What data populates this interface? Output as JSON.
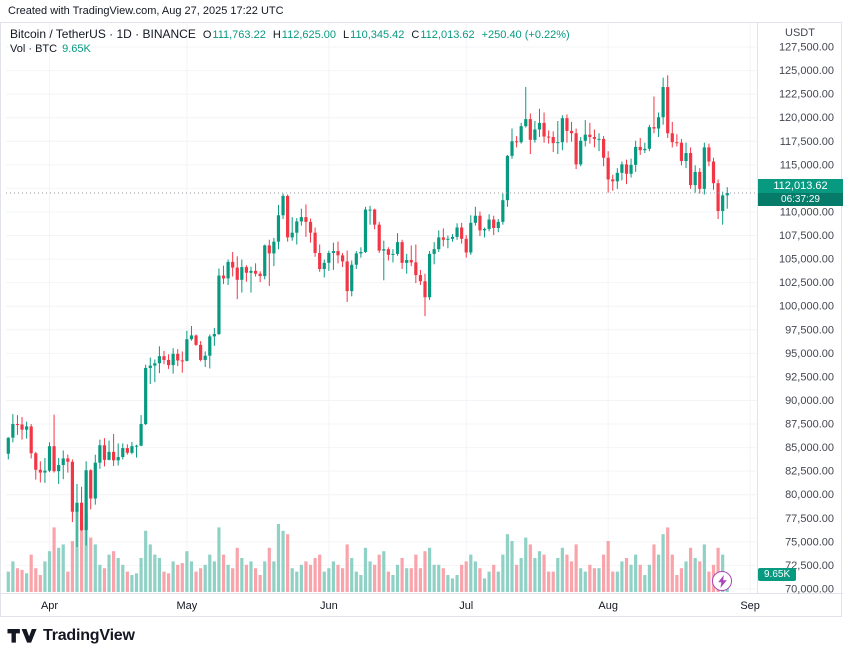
{
  "meta": {
    "created_line": "Created with TradingView.com, Aug 27, 2025 17:22 UTC"
  },
  "legend": {
    "title": "Bitcoin / TetherUS · 1D · BINANCE",
    "ohlc": [
      {
        "label": "O",
        "value": "111,763.22"
      },
      {
        "label": "H",
        "value": "112,625.00"
      },
      {
        "label": "L",
        "value": "110,345.42"
      },
      {
        "label": "C",
        "value": "112,013.62"
      }
    ],
    "change": "+250.40 (+0.22%)",
    "vol_title": "Vol · BTC",
    "vol_value": "9.65K"
  },
  "axis": {
    "currency": "USDT",
    "price_ticks": [
      "127,500.00",
      "125,000.00",
      "122,500.00",
      "120,000.00",
      "117,500.00",
      "115,000.00",
      "112,500.00",
      "110,000.00",
      "107,500.00",
      "105,000.00",
      "102,500.00",
      "100,000.00",
      "97,500.00",
      "95,000.00",
      "92,500.00",
      "90,000.00",
      "87,500.00",
      "85,000.00",
      "82,500.00",
      "80,000.00",
      "77,500.00",
      "75,000.00",
      "72,500.00",
      "70,000.00"
    ],
    "price_tick_values": [
      127500,
      125000,
      122500,
      120000,
      117500,
      115000,
      112500,
      110000,
      107500,
      105000,
      102500,
      100000,
      97500,
      95000,
      92500,
      90000,
      87500,
      85000,
      82500,
      80000,
      77500,
      75000,
      72500,
      70000
    ],
    "months": [
      {
        "label": "Apr",
        "index": 9
      },
      {
        "label": "May",
        "index": 39
      },
      {
        "label": "Jun",
        "index": 70
      },
      {
        "label": "Jul",
        "index": 100
      },
      {
        "label": "Aug",
        "index": 131
      },
      {
        "label": "Sep",
        "index": 162
      }
    ],
    "last_price_label": "112,013.62",
    "countdown": "06:37:29",
    "volume_label": "9.65K"
  },
  "colors": {
    "up": "#089981",
    "down": "#f23645",
    "vol_up": "#90d1c6",
    "vol_down": "#f9a4ab",
    "grid": "#f3f4f7",
    "border": "#e0e3eb",
    "axis_text": "#434651",
    "axis_text_dark": "#131722",
    "price_line": "#9598a1",
    "badge_bg": "#089981",
    "lightning": "#ab47bc"
  },
  "footer": {
    "brand": "TradingView"
  },
  "chart_data": {
    "type": "candlestick",
    "title": "Bitcoin / TetherUS 1D BINANCE",
    "interval": "1D",
    "start_date": "2025-03-23",
    "end_date": "2025-08-27",
    "price_range": [
      70000,
      127500
    ],
    "total_slots": 164,
    "vol_scale_max": 50,
    "last_close": 112013.62,
    "candles": [
      [
        84350,
        86100,
        83750,
        86050
      ],
      [
        86050,
        88550,
        85550,
        87500
      ],
      [
        87500,
        88450,
        86350,
        87450
      ],
      [
        87450,
        88250,
        85850,
        86900
      ],
      [
        86900,
        87750,
        85950,
        87250
      ],
      [
        87250,
        87500,
        83850,
        84400
      ],
      [
        84400,
        84550,
        81600,
        82650
      ],
      [
        82650,
        83550,
        81300,
        82350
      ],
      [
        82350,
        83900,
        81250,
        82550
      ],
      [
        82550,
        85550,
        82400,
        85150
      ],
      [
        85150,
        88500,
        82350,
        82500
      ],
      [
        82500,
        83900,
        81150,
        83150
      ],
      [
        83150,
        84700,
        81650,
        83850
      ],
      [
        83850,
        84250,
        82350,
        83500
      ],
      [
        83500,
        83750,
        77100,
        78200
      ],
      [
        78200,
        81150,
        74450,
        79150
      ],
      [
        79150,
        80850,
        76150,
        76250
      ],
      [
        76250,
        83550,
        74600,
        82600
      ],
      [
        82600,
        82700,
        78450,
        79600
      ],
      [
        79600,
        84250,
        78950,
        83400
      ],
      [
        83400,
        85850,
        82750,
        85250
      ],
      [
        85250,
        86000,
        83000,
        83700
      ],
      [
        83700,
        85750,
        83650,
        84550
      ],
      [
        84550,
        86450,
        83050,
        83650
      ],
      [
        83650,
        85450,
        83100,
        84000
      ],
      [
        84000,
        85450,
        83750,
        84950
      ],
      [
        84950,
        85350,
        84250,
        84450
      ],
      [
        84450,
        85600,
        84300,
        85150
      ],
      [
        85150,
        85300,
        83950,
        85200
      ],
      [
        85200,
        88450,
        85150,
        87500
      ],
      [
        87500,
        93800,
        87400,
        93450
      ],
      [
        93450,
        94550,
        91750,
        93700
      ],
      [
        93700,
        94350,
        91950,
        93950
      ],
      [
        93950,
        95750,
        92900,
        94700
      ],
      [
        94700,
        95250,
        93850,
        94300
      ],
      [
        94300,
        94900,
        93350,
        93750
      ],
      [
        93750,
        95550,
        92850,
        94950
      ],
      [
        94950,
        95450,
        93650,
        94250
      ],
      [
        94250,
        95200,
        92950,
        94200
      ],
      [
        94200,
        97400,
        94150,
        96500
      ],
      [
        96500,
        97900,
        96350,
        96900
      ],
      [
        96900,
        97000,
        95800,
        95900
      ],
      [
        95900,
        96300,
        94150,
        94300
      ],
      [
        94300,
        95200,
        93550,
        94750
      ],
      [
        94750,
        97000,
        93400,
        96800
      ],
      [
        96800,
        97700,
        95800,
        97050
      ],
      [
        97050,
        104000,
        96950,
        103250
      ],
      [
        103250,
        104300,
        102350,
        102950
      ],
      [
        102950,
        104950,
        102250,
        104700
      ],
      [
        104700,
        105750,
        103150,
        104100
      ],
      [
        104100,
        105300,
        100750,
        102800
      ],
      [
        102800,
        104950,
        101450,
        104150
      ],
      [
        104150,
        104350,
        102600,
        103550
      ],
      [
        103550,
        104200,
        101450,
        103750
      ],
      [
        103750,
        104550,
        103150,
        103450
      ],
      [
        103450,
        103700,
        102550,
        103200
      ],
      [
        103200,
        106550,
        102850,
        106450
      ],
      [
        106450,
        107050,
        102150,
        105600
      ],
      [
        105600,
        107250,
        104250,
        106850
      ],
      [
        106850,
        110750,
        106050,
        109650
      ],
      [
        109650,
        111950,
        109250,
        111700
      ],
      [
        111700,
        111850,
        106850,
        107300
      ],
      [
        107300,
        109450,
        106950,
        107800
      ],
      [
        107800,
        109350,
        106550,
        109000
      ],
      [
        109000,
        110350,
        108550,
        109450
      ],
      [
        109450,
        110800,
        107350,
        108950
      ],
      [
        108950,
        109300,
        106750,
        107800
      ],
      [
        107800,
        108350,
        105250,
        105650
      ],
      [
        105650,
        106550,
        103650,
        103950
      ],
      [
        103950,
        104950,
        103050,
        104600
      ],
      [
        104600,
        105900,
        103750,
        105650
      ],
      [
        105650,
        106750,
        103850,
        105850
      ],
      [
        105850,
        106850,
        104550,
        105400
      ],
      [
        105400,
        105650,
        104150,
        104750
      ],
      [
        104750,
        105900,
        100450,
        101600
      ],
      [
        101600,
        104850,
        101050,
        104400
      ],
      [
        104400,
        105850,
        103950,
        105600
      ],
      [
        105600,
        106250,
        105150,
        105750
      ],
      [
        105750,
        110550,
        105650,
        110250
      ],
      [
        110250,
        110650,
        108650,
        110250
      ],
      [
        110250,
        110350,
        108150,
        108650
      ],
      [
        108650,
        108950,
        105650,
        105900
      ],
      [
        105900,
        106950,
        102750,
        106050
      ],
      [
        106050,
        106250,
        104850,
        105450
      ],
      [
        105450,
        106050,
        104650,
        105550
      ],
      [
        105550,
        107750,
        105350,
        106800
      ],
      [
        106800,
        107050,
        103950,
        104600
      ],
      [
        104600,
        105550,
        103450,
        104900
      ],
      [
        104900,
        106450,
        104250,
        104650
      ],
      [
        104650,
        106550,
        102450,
        103300
      ],
      [
        103300,
        103850,
        102250,
        102650
      ],
      [
        102650,
        103450,
        98950,
        100950
      ],
      [
        100950,
        105850,
        100650,
        105550
      ],
      [
        105550,
        106800,
        104450,
        106050
      ],
      [
        106050,
        108050,
        105750,
        107300
      ],
      [
        107300,
        108250,
        106350,
        107050
      ],
      [
        107050,
        107500,
        106150,
        107150
      ],
      [
        107150,
        107650,
        106850,
        107350
      ],
      [
        107350,
        108800,
        107050,
        108350
      ],
      [
        108350,
        108850,
        106650,
        107150
      ],
      [
        107150,
        107550,
        105150,
        105700
      ],
      [
        105700,
        109650,
        105450,
        108850
      ],
      [
        108850,
        110550,
        108550,
        109600
      ],
      [
        109600,
        110050,
        107450,
        108050
      ],
      [
        108050,
        108350,
        107300,
        108200
      ],
      [
        108200,
        109750,
        107950,
        109200
      ],
      [
        109200,
        109600,
        107550,
        108300
      ],
      [
        108300,
        109250,
        107850,
        108950
      ],
      [
        108950,
        111950,
        108650,
        111250
      ],
      [
        111250,
        116050,
        110550,
        115950
      ],
      [
        115950,
        118850,
        115650,
        117500
      ],
      [
        117500,
        118050,
        116850,
        117400
      ],
      [
        117400,
        119450,
        117250,
        119100
      ],
      [
        119100,
        123250,
        118950,
        119850
      ],
      [
        119850,
        120450,
        116150,
        117650
      ],
      [
        117650,
        119650,
        117350,
        118750
      ],
      [
        118750,
        120950,
        117950,
        119450
      ],
      [
        119450,
        120550,
        117350,
        118000
      ],
      [
        118000,
        118650,
        117250,
        117950
      ],
      [
        117950,
        118550,
        116350,
        117300
      ],
      [
        117300,
        119650,
        116150,
        117400
      ],
      [
        117400,
        120250,
        116550,
        119950
      ],
      [
        119950,
        120350,
        117350,
        118600
      ],
      [
        118600,
        119550,
        117450,
        118350
      ],
      [
        118350,
        118850,
        114550,
        115050
      ],
      [
        115050,
        117950,
        114850,
        117550
      ],
      [
        117550,
        119750,
        116950,
        118200
      ],
      [
        118200,
        119450,
        117250,
        117950
      ],
      [
        117950,
        118750,
        116850,
        117750
      ],
      [
        117750,
        118350,
        116450,
        117750
      ],
      [
        117750,
        118050,
        114850,
        115750
      ],
      [
        115750,
        116450,
        112050,
        113450
      ],
      [
        113450,
        113950,
        112250,
        113250
      ],
      [
        113250,
        114650,
        112450,
        114150
      ],
      [
        114150,
        115350,
        113350,
        115050
      ],
      [
        115050,
        115550,
        112950,
        114050
      ],
      [
        114050,
        115650,
        113650,
        115000
      ],
      [
        115000,
        117550,
        114250,
        116900
      ],
      [
        116900,
        117850,
        116050,
        116550
      ],
      [
        116550,
        117350,
        116250,
        116700
      ],
      [
        116700,
        119250,
        116450,
        119000
      ],
      [
        119000,
        122250,
        118350,
        118850
      ],
      [
        118850,
        120550,
        117950,
        120050
      ],
      [
        120050,
        124250,
        119250,
        123250
      ],
      [
        123250,
        124500,
        117850,
        118350
      ],
      [
        118350,
        119550,
        116850,
        117400
      ],
      [
        117400,
        118250,
        116950,
        117350
      ],
      [
        117350,
        117750,
        114950,
        115400
      ],
      [
        115400,
        117350,
        114650,
        116250
      ],
      [
        116250,
        116850,
        112450,
        112850
      ],
      [
        112850,
        114950,
        112050,
        114250
      ],
      [
        114250,
        114650,
        111950,
        112450
      ],
      [
        112450,
        117350,
        111850,
        116850
      ],
      [
        116850,
        117250,
        114850,
        115350
      ],
      [
        115350,
        115750,
        112350,
        113050
      ],
      [
        113050,
        113450,
        109250,
        110100
      ],
      [
        110100,
        112150,
        108650,
        111750
      ],
      [
        111763.22,
        112625,
        110345.42,
        112013.62
      ]
    ],
    "volumes": [
      12,
      18,
      14,
      13,
      11,
      22,
      14,
      10,
      18,
      24,
      38,
      26,
      28,
      12,
      30,
      48,
      40,
      46,
      32,
      28,
      16,
      14,
      22,
      24,
      20,
      16,
      12,
      10,
      11,
      20,
      36,
      28,
      22,
      20,
      12,
      11,
      18,
      16,
      17,
      24,
      18,
      12,
      14,
      16,
      22,
      18,
      38,
      22,
      16,
      14,
      26,
      20,
      16,
      18,
      14,
      10,
      18,
      26,
      18,
      40,
      36,
      34,
      14,
      12,
      16,
      18,
      16,
      20,
      22,
      12,
      14,
      18,
      16,
      14,
      28,
      20,
      12,
      10,
      26,
      18,
      16,
      22,
      24,
      12,
      10,
      16,
      20,
      14,
      14,
      22,
      14,
      24,
      26,
      16,
      16,
      14,
      10,
      8,
      10,
      16,
      18,
      22,
      18,
      14,
      8,
      12,
      16,
      12,
      22,
      34,
      30,
      16,
      20,
      32,
      28,
      20,
      24,
      22,
      12,
      12,
      20,
      26,
      22,
      18,
      28,
      14,
      12,
      16,
      14,
      14,
      22,
      30,
      12,
      12,
      18,
      20,
      16,
      22,
      16,
      10,
      16,
      28,
      22,
      34,
      38,
      22,
      10,
      14,
      18,
      26,
      20,
      18,
      28,
      12,
      16,
      26,
      22,
      9.65
    ]
  }
}
